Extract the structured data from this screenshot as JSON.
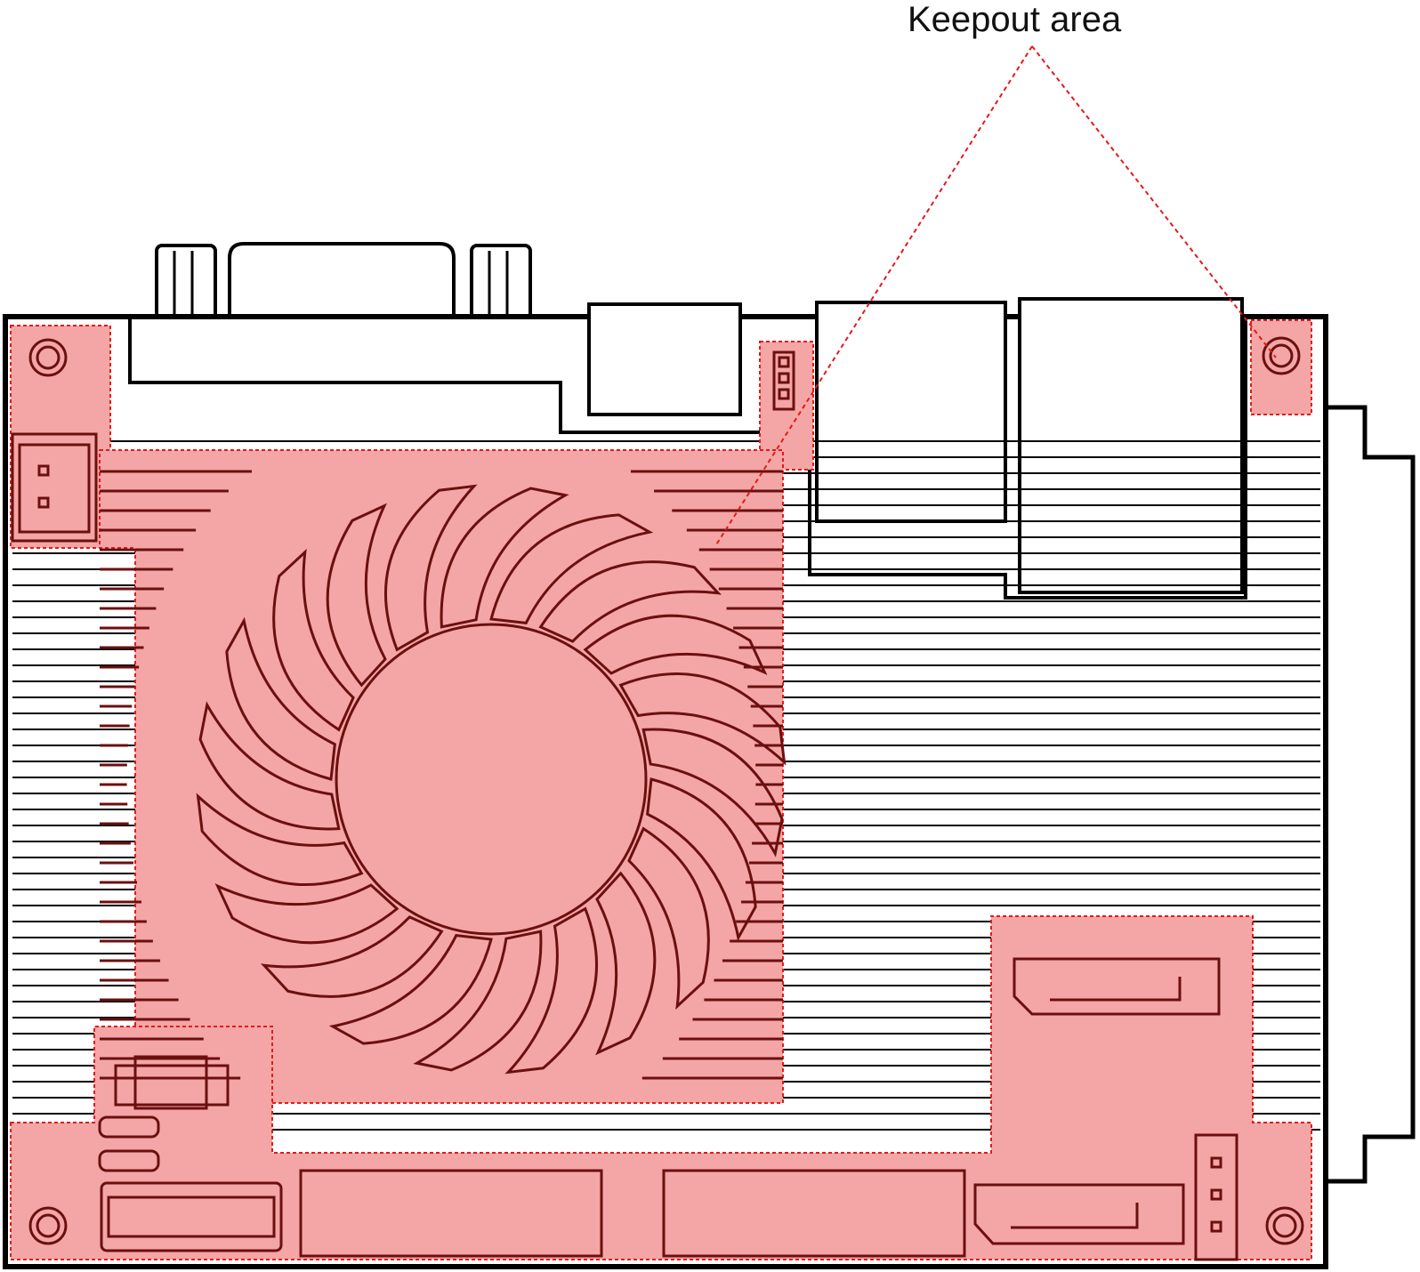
{
  "callout": {
    "label": "Keepout area"
  },
  "colors": {
    "keepout_fill": "#f4a6a6",
    "keepout_border": "#e31a1a",
    "keepout_stroke": "#6b0f0f",
    "board_stroke": "#000000",
    "background": "#ffffff"
  },
  "icons": {
    "fan": "fan-icon",
    "mounting_hole": "mounting-hole-icon",
    "vga": "vga-connector-icon",
    "heatsink_fins": "heatsink-fins-icon"
  }
}
